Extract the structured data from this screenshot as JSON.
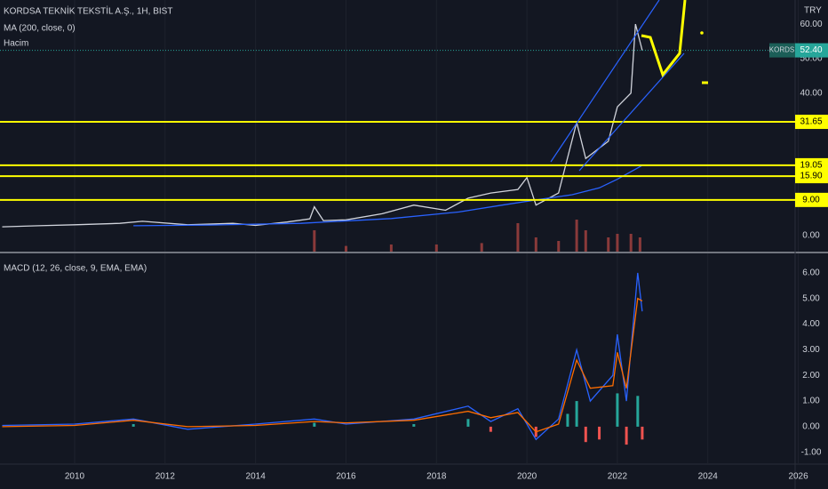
{
  "chart_data": [
    {
      "type": "line",
      "title": "KORDSA TEKNİK TEKSTİL A.Ş., 1H, BIST",
      "currency": "TRY",
      "xlim": [
        2008.35,
        2025.93
      ],
      "xticks": [
        2010,
        2012,
        2014,
        2016,
        2018,
        2020,
        2022,
        2024,
        2026
      ],
      "ylim": [
        -6,
        67
      ],
      "yticks": [
        {
          "value": 60,
          "label": "60.00"
        },
        {
          "value": 50,
          "label": "50.00"
        },
        {
          "value": 40,
          "label": "40.00"
        }
      ],
      "levels": [
        {
          "value": 31.65,
          "label": "31.65"
        },
        {
          "value": 19.05,
          "label": "19.05"
        },
        {
          "value": 15.9,
          "label": "15.90"
        },
        {
          "value": 9,
          "label": "9.00"
        }
      ],
      "level_color": "#ffff00",
      "grid": true,
      "last_price": {
        "symbol": "KORDS",
        "value": 52.4,
        "label": "52.40",
        "color": "#26a69a"
      },
      "series": [
        {
          "name": "KORDS",
          "color": "#d1d4dc",
          "x": [
            2008.4,
            2009.2,
            2010,
            2011,
            2011.5,
            2012.5,
            2013.5,
            2014,
            2014.7,
            2015.2,
            2015.3,
            2015.5,
            2016,
            2016.8,
            2017.5,
            2018.2,
            2018.7,
            2019.2,
            2019.8,
            2020,
            2020.2,
            2020.7,
            2021.1,
            2021.3,
            2021.8,
            2022,
            2022.3,
            2022.4,
            2022.55
          ],
          "values": [
            1.2,
            1.5,
            1.8,
            2.2,
            2.8,
            1.8,
            2.2,
            1.6,
            2.6,
            3.5,
            7,
            3,
            3.2,
            5,
            7.5,
            6,
            9.5,
            11,
            12,
            15.5,
            7.5,
            11,
            31.5,
            21,
            26,
            36,
            40,
            60,
            52.4
          ]
        },
        {
          "name": "MA (200, close, 0)",
          "color": "#2962ff",
          "x": [
            2011.3,
            2013,
            2015,
            2017,
            2018.5,
            2019.5,
            2020.3,
            2021,
            2021.6,
            2022,
            2022.55
          ],
          "values": [
            1.5,
            1.7,
            2.2,
            3.6,
            5.5,
            7.6,
            9.2,
            10.5,
            12.5,
            15,
            19
          ]
        }
      ],
      "volume": {
        "name": "Hacim",
        "color": "#8a3a3a",
        "ticks": [
          {
            "value": 0,
            "label": "0.00"
          }
        ],
        "x": [
          2015.3,
          2016,
          2017,
          2018,
          2019,
          2019.8,
          2020.2,
          2020.7,
          2021.1,
          2021.3,
          2021.8,
          2022,
          2022.3,
          2022.5
        ],
        "values": [
          30,
          8,
          10,
          10,
          12,
          40,
          20,
          15,
          45,
          30,
          20,
          25,
          25,
          20
        ]
      }
    },
    {
      "type": "line",
      "title": "MACD (12, 26, close, 9, EMA, EMA)",
      "xlim": [
        2008.35,
        2025.93
      ],
      "ylim": [
        -1.46,
        6.76
      ],
      "yticks": [
        {
          "value": 6,
          "label": "6.00"
        },
        {
          "value": 5,
          "label": "5.00"
        },
        {
          "value": 4,
          "label": "4.00"
        },
        {
          "value": 3,
          "label": "3.00"
        },
        {
          "value": 2,
          "label": "2.00"
        },
        {
          "value": 1,
          "label": "1.00"
        },
        {
          "value": 0,
          "label": "0.00"
        },
        {
          "value": -1,
          "label": "-1.00"
        }
      ],
      "series": [
        {
          "color": "#2962ff",
          "x": [
            2008.4,
            2010,
            2011.3,
            2012.5,
            2014,
            2015.3,
            2016,
            2017.5,
            2018.7,
            2019.2,
            2019.8,
            2020.2,
            2020.7,
            2021.1,
            2021.4,
            2021.9,
            2022,
            2022.2,
            2022.45,
            2022.55
          ],
          "values": [
            0.05,
            0.1,
            0.3,
            -0.1,
            0.1,
            0.3,
            0.1,
            0.3,
            0.8,
            0.2,
            0.7,
            -0.5,
            0.3,
            3.0,
            1.0,
            2.0,
            3.6,
            1.0,
            6.0,
            4.5
          ]
        },
        {
          "color": "#ff6d00",
          "x": [
            2008.4,
            2010,
            2011.3,
            2012.5,
            2014,
            2015.3,
            2016,
            2017.5,
            2018.7,
            2019.2,
            2019.8,
            2020.2,
            2020.7,
            2021.1,
            2021.4,
            2021.9,
            2022,
            2022.2,
            2022.45,
            2022.55
          ],
          "values": [
            0,
            0.05,
            0.25,
            0,
            0.05,
            0.2,
            0.15,
            0.25,
            0.6,
            0.35,
            0.55,
            -0.2,
            0.1,
            2.6,
            1.5,
            1.6,
            2.9,
            1.5,
            5.0,
            4.9
          ]
        }
      ],
      "histogram": {
        "up_color": "#26a69a",
        "down_color": "#ef5350",
        "x": [
          2011.3,
          2015.3,
          2017.5,
          2018.7,
          2019.2,
          2020.2,
          2020.9,
          2021.1,
          2021.3,
          2021.6,
          2022,
          2022.2,
          2022.45,
          2022.55
        ],
        "values": [
          0.1,
          0.15,
          0.1,
          0.3,
          -0.2,
          -0.4,
          0.5,
          1.0,
          -0.6,
          -0.5,
          1.3,
          -0.7,
          1.2,
          -0.5
        ]
      }
    }
  ]
}
